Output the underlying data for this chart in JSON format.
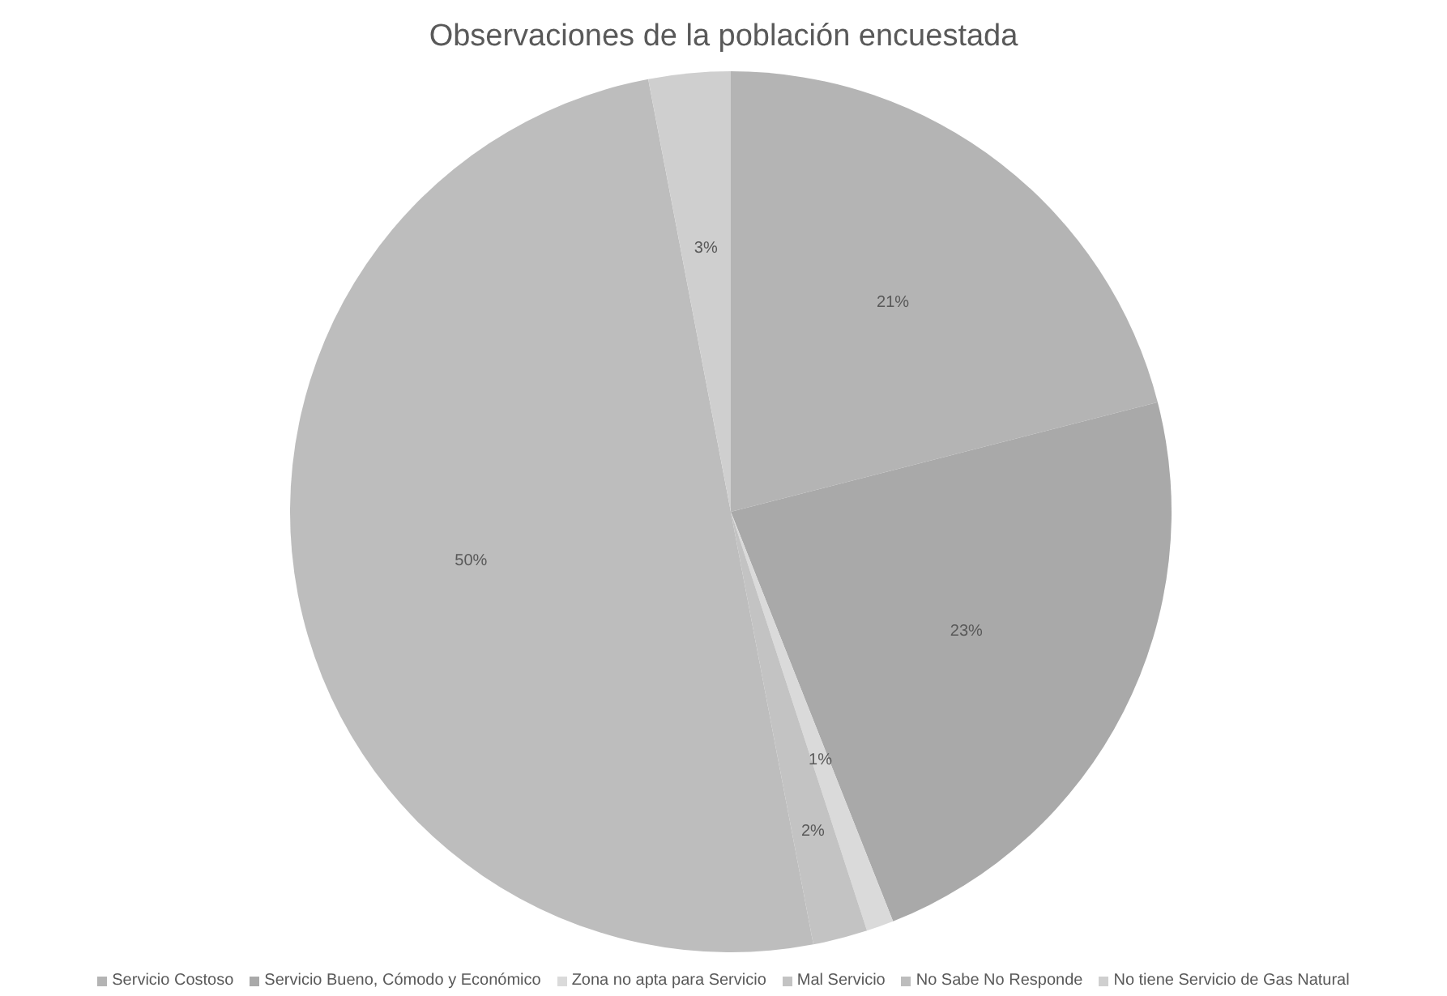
{
  "chart_data": {
    "type": "pie",
    "title": "Observaciones de la población encuestada",
    "categories": [
      "Servicio Costoso",
      "Servicio Bueno, Cómodo y Económico",
      "Zona no apta para Servicio",
      "Mal Servicio",
      "No Sabe No Responde",
      "No tiene Servicio de Gas Natural"
    ],
    "values": [
      21,
      23,
      1,
      2,
      50,
      3
    ],
    "colors": [
      "#b4b4b4",
      "#a9a9a9",
      "#dadada",
      "#c3c3c3",
      "#bdbdbd",
      "#cfcfcf"
    ],
    "value_labels": [
      "21%",
      "23%",
      "1%",
      "2%",
      "50%",
      "3%"
    ],
    "legend": "bottom"
  }
}
